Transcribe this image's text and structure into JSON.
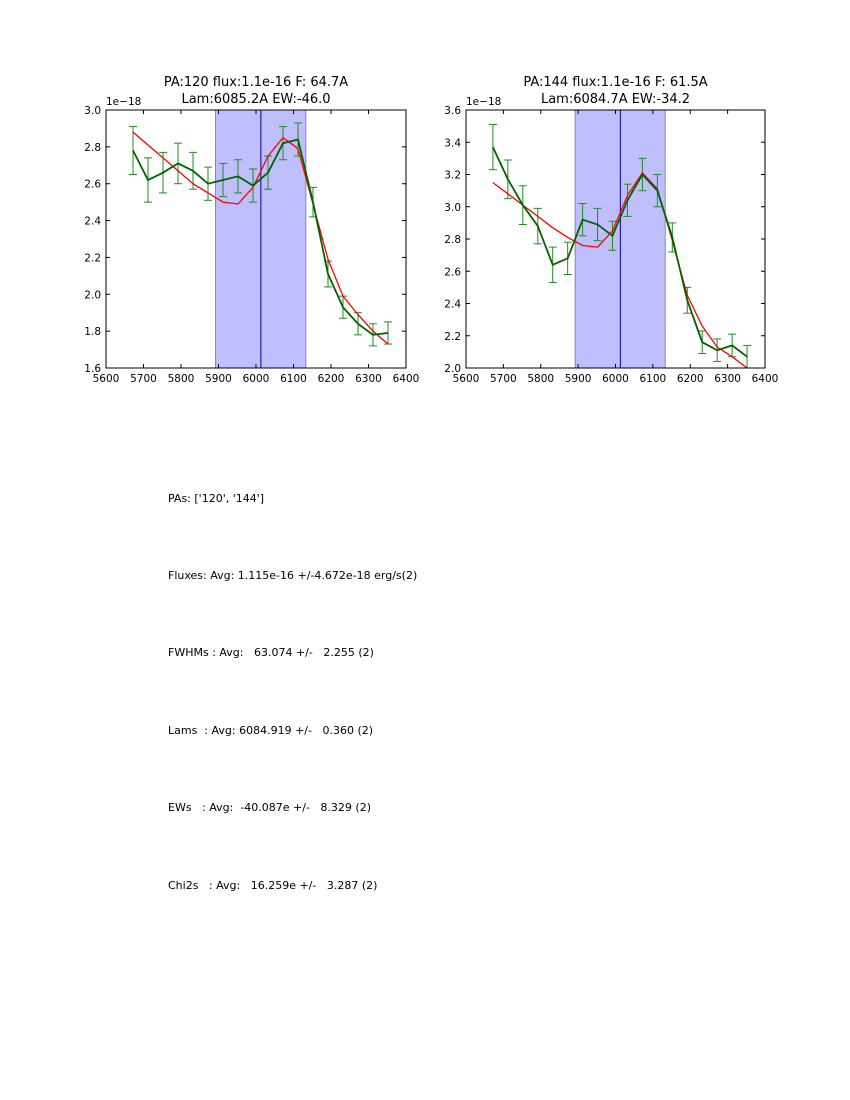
{
  "chart_data": [
    {
      "type": "line",
      "title_line1": "PA:120 flux:1.1e-16 F: 64.7A",
      "title_line2": "Lam:6085.2A EW:-46.0",
      "offset_label": "1e−18",
      "xlim": [
        5600,
        6400
      ],
      "ylim": [
        1.6,
        3.0
      ],
      "xticks": [
        5600,
        5700,
        5800,
        5900,
        6000,
        6100,
        6200,
        6300,
        6400
      ],
      "xtick_labels": [
        "5600",
        "5700",
        "5800",
        "5900",
        "6000",
        "6100",
        "6200",
        "6300",
        "6400"
      ],
      "yticks": [
        1.6,
        1.8,
        2.0,
        2.2,
        2.4,
        2.6,
        2.8,
        3.0
      ],
      "ytick_labels": [
        "1.6",
        "1.8",
        "2.0",
        "2.2",
        "2.4",
        "2.6",
        "2.8",
        "3.0"
      ],
      "shaded_region": [
        5892,
        6133
      ],
      "center_line": 6013,
      "colors": {
        "data": "#006400",
        "error": "#228b22",
        "fit": "#ff0000",
        "shade": "#bfbfff",
        "shade_edge": "#7070a0",
        "center": "#00008b"
      },
      "series": [
        {
          "name": "data",
          "x": [
            5672,
            5712,
            5752,
            5792,
            5832,
            5872,
            5912,
            5952,
            5992,
            6032,
            6072,
            6112,
            6152,
            6192,
            6232,
            6272,
            6312,
            6352
          ],
          "y": [
            2.78,
            2.62,
            2.66,
            2.71,
            2.67,
            2.6,
            2.62,
            2.64,
            2.59,
            2.66,
            2.82,
            2.84,
            2.5,
            2.11,
            1.93,
            1.84,
            1.78,
            1.79
          ],
          "err": [
            0.13,
            0.12,
            0.11,
            0.11,
            0.1,
            0.09,
            0.09,
            0.09,
            0.09,
            0.09,
            0.09,
            0.09,
            0.08,
            0.07,
            0.06,
            0.06,
            0.06,
            0.06
          ]
        },
        {
          "name": "fit",
          "x": [
            5672,
            5712,
            5752,
            5792,
            5832,
            5872,
            5912,
            5952,
            5992,
            6032,
            6072,
            6112,
            6152,
            6192,
            6232,
            6272,
            6312,
            6352
          ],
          "y": [
            2.88,
            2.81,
            2.74,
            2.67,
            2.6,
            2.55,
            2.5,
            2.49,
            2.58,
            2.75,
            2.85,
            2.79,
            2.49,
            2.19,
            1.99,
            1.89,
            1.8,
            1.73
          ]
        }
      ]
    },
    {
      "type": "line",
      "title_line1": "PA:144 flux:1.1e-16 F: 61.5A",
      "title_line2": "Lam:6084.7A EW:-34.2",
      "offset_label": "1e−18",
      "xlim": [
        5600,
        6400
      ],
      "ylim": [
        2.0,
        3.6
      ],
      "xticks": [
        5600,
        5700,
        5800,
        5900,
        6000,
        6100,
        6200,
        6300,
        6400
      ],
      "xtick_labels": [
        "5600",
        "5700",
        "5800",
        "5900",
        "6000",
        "6100",
        "6200",
        "6300",
        "6400"
      ],
      "yticks": [
        2.0,
        2.2,
        2.4,
        2.6,
        2.8,
        3.0,
        3.2,
        3.4,
        3.6
      ],
      "ytick_labels": [
        "2.0",
        "2.2",
        "2.4",
        "2.6",
        "2.8",
        "3.0",
        "3.2",
        "3.4",
        "3.6"
      ],
      "shaded_region": [
        5892,
        6133
      ],
      "center_line": 6013,
      "colors": {
        "data": "#006400",
        "error": "#228b22",
        "fit": "#ff0000",
        "shade": "#bfbfff",
        "shade_edge": "#7070a0",
        "center": "#00008b"
      },
      "series": [
        {
          "name": "data",
          "x": [
            5672,
            5712,
            5752,
            5792,
            5832,
            5872,
            5912,
            5952,
            5992,
            6032,
            6072,
            6112,
            6152,
            6192,
            6232,
            6272,
            6312,
            6352
          ],
          "y": [
            3.37,
            3.17,
            3.01,
            2.88,
            2.64,
            2.68,
            2.92,
            2.89,
            2.82,
            3.04,
            3.2,
            3.1,
            2.81,
            2.42,
            2.16,
            2.11,
            2.14,
            2.07
          ],
          "err": [
            0.14,
            0.12,
            0.12,
            0.11,
            0.11,
            0.1,
            0.1,
            0.1,
            0.09,
            0.1,
            0.1,
            0.1,
            0.09,
            0.08,
            0.07,
            0.07,
            0.07,
            0.07
          ]
        },
        {
          "name": "fit",
          "x": [
            5672,
            5712,
            5752,
            5792,
            5832,
            5872,
            5912,
            5952,
            5992,
            6032,
            6072,
            6112,
            6152,
            6192,
            6232,
            6272,
            6312,
            6352
          ],
          "y": [
            3.15,
            3.08,
            3.01,
            2.94,
            2.87,
            2.81,
            2.76,
            2.75,
            2.85,
            3.07,
            3.21,
            3.11,
            2.79,
            2.45,
            2.26,
            2.13,
            2.07,
            2.0
          ]
        }
      ]
    }
  ],
  "stats": {
    "pas": "PAs: ['120', '144']",
    "fluxes": "Fluxes: Avg: 1.115e-16 +/-4.672e-18 erg/s(2)",
    "fwhms": "FWHMs : Avg:   63.074 +/-   2.255 (2)",
    "lams": "Lams  : Avg: 6084.919 +/-   0.360 (2)",
    "ews": "EWs   : Avg:  -40.087e +/-   8.329 (2)",
    "chi2s": "Chi2s   : Avg:   16.259e +/-   3.287 (2)"
  }
}
